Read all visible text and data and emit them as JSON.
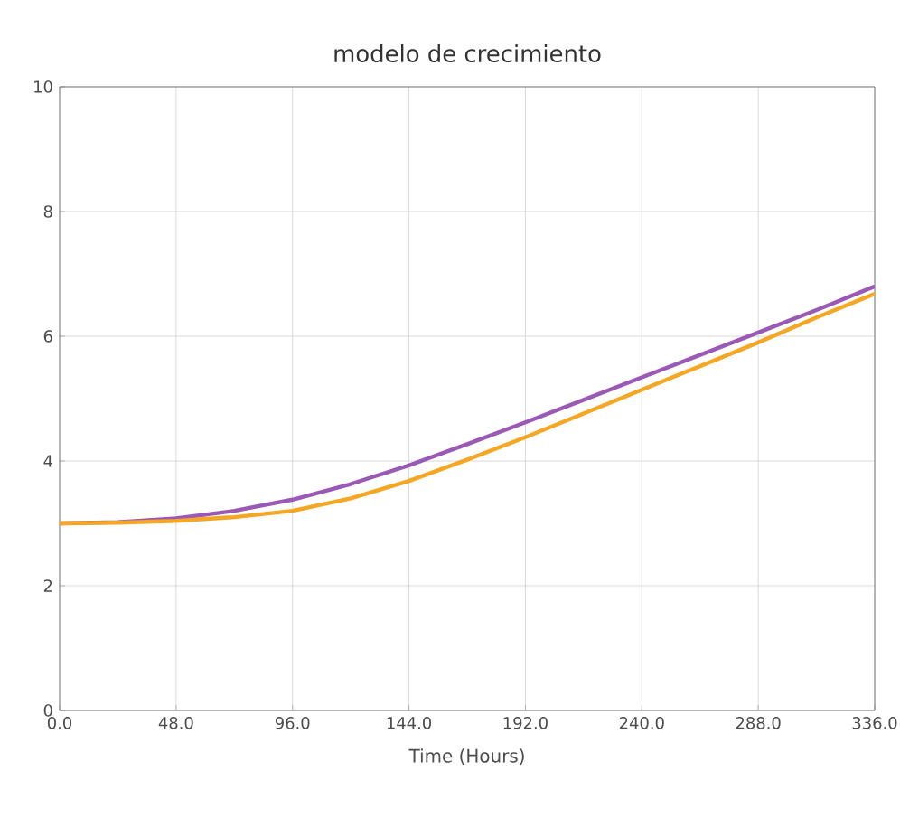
{
  "chart_data": {
    "type": "line",
    "title": "modelo de crecimiento",
    "xlabel": "Time (Hours)",
    "x": [
      0,
      24,
      48,
      72,
      96,
      120,
      144,
      168,
      192,
      216,
      240,
      264,
      288,
      312,
      336
    ],
    "series": [
      {
        "color": "#9b59b6",
        "values": [
          3.0,
          3.02,
          3.08,
          3.2,
          3.38,
          3.63,
          3.93,
          4.27,
          4.62,
          4.98,
          5.34,
          5.7,
          6.06,
          6.42,
          6.8
        ]
      },
      {
        "color": "#f5a623",
        "values": [
          3.0,
          3.01,
          3.04,
          3.1,
          3.2,
          3.4,
          3.68,
          4.02,
          4.38,
          4.76,
          5.14,
          5.52,
          5.9,
          6.3,
          6.68
        ]
      }
    ],
    "xlim": [
      0,
      336
    ],
    "xticks": [
      {
        "value": 0,
        "label": "0.0"
      },
      {
        "value": 48,
        "label": "48.0"
      },
      {
        "value": 96,
        "label": "96.0"
      },
      {
        "value": 144,
        "label": "144.0"
      },
      {
        "value": 192,
        "label": "192.0"
      },
      {
        "value": 240,
        "label": "240.0"
      },
      {
        "value": 288,
        "label": "288.0"
      },
      {
        "value": 336,
        "label": "336.0"
      }
    ],
    "ylim": [
      0,
      10
    ],
    "yticks": [
      0,
      2,
      4,
      6,
      8,
      10
    ],
    "grid": true,
    "marker": "none",
    "line_style": "solid"
  }
}
